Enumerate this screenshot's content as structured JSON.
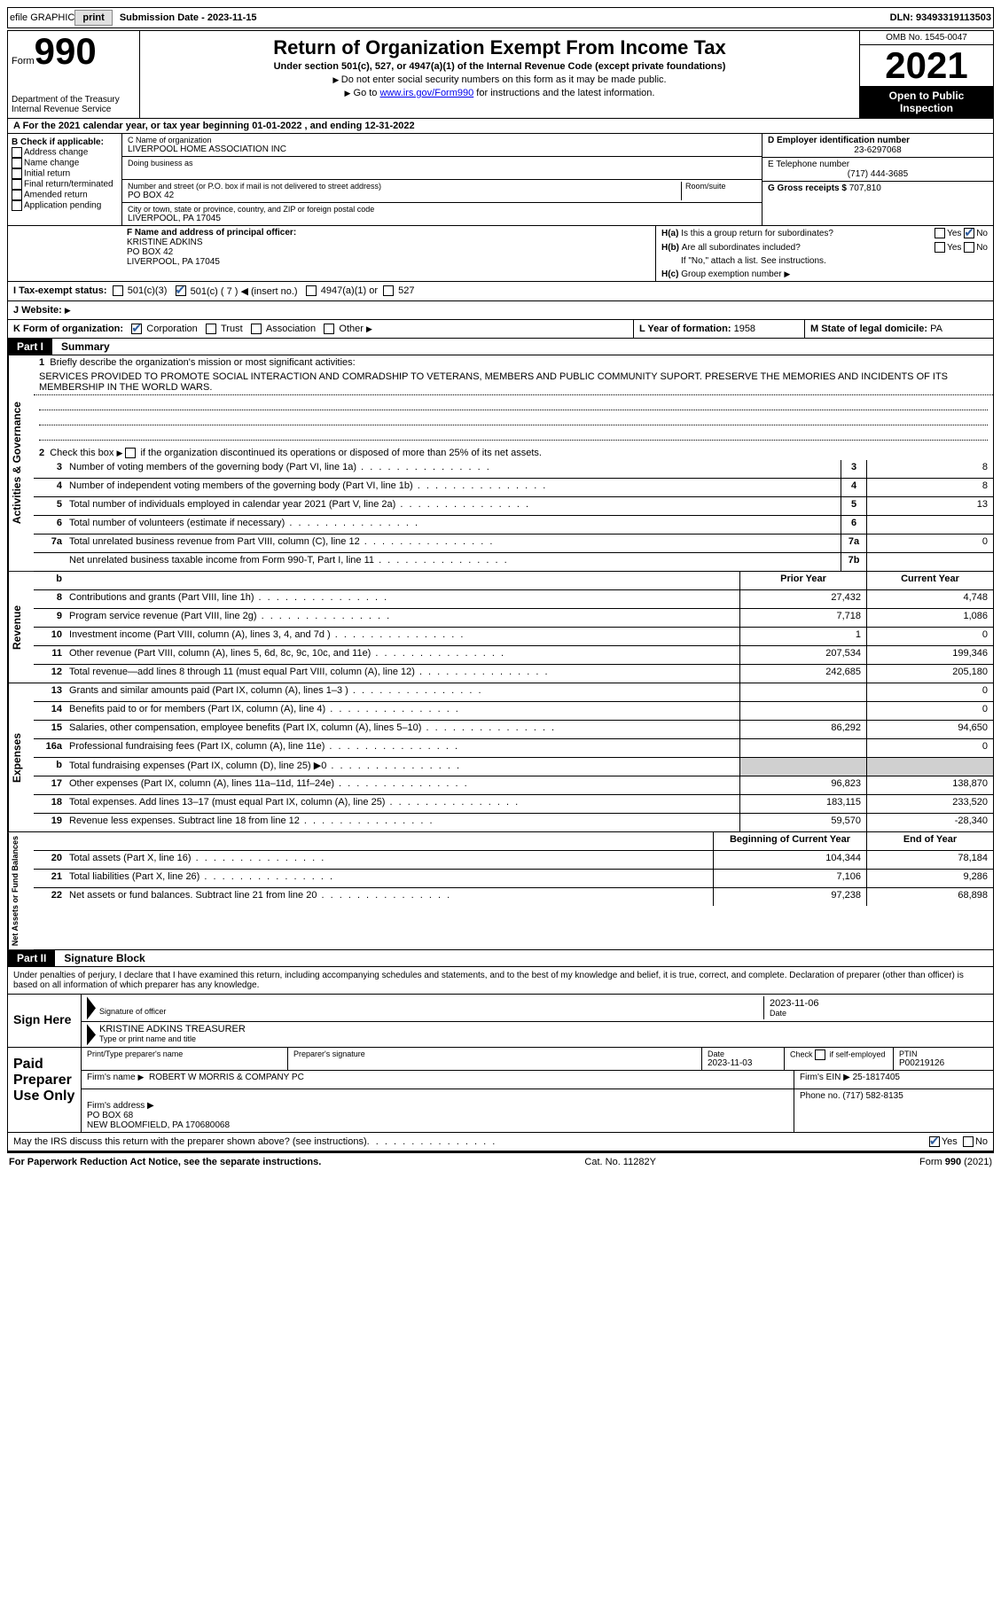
{
  "topbar": {
    "efile": "efile GRAPHIC",
    "print": "print",
    "submission": "Submission Date - 2023-11-15",
    "dln": "DLN: 93493319113503"
  },
  "header": {
    "form_word": "Form",
    "form_number": "990",
    "title": "Return of Organization Exempt From Income Tax",
    "subtitle": "Under section 501(c), 527, or 4947(a)(1) of the Internal Revenue Code (except private foundations)",
    "note1": "Do not enter social security numbers on this form as it may be made public.",
    "note2_a": "Go to ",
    "note2_link": "www.irs.gov/Form990",
    "note2_b": " for instructions and the latest information.",
    "dept": "Department of the Treasury\nInternal Revenue Service",
    "omb": "OMB No. 1545-0047",
    "year": "2021",
    "open": "Open to Public Inspection"
  },
  "a_line": "A For the 2021 calendar year, or tax year beginning 01-01-2022    , and ending 12-31-2022",
  "b": {
    "lead": "B Check if applicable:",
    "addr_change": "Address change",
    "name_change": "Name change",
    "initial": "Initial return",
    "final": "Final return/terminated",
    "amended": "Amended return",
    "app_pending": "Application pending"
  },
  "c": {
    "label": "C Name of organization",
    "name": "LIVERPOOL HOME ASSOCIATION INC",
    "dba_label": "Doing business as",
    "street_label": "Number and street (or P.O. box if mail is not delivered to street address)",
    "room_label": "Room/suite",
    "street": "PO BOX 42",
    "city_label": "City or town, state or province, country, and ZIP or foreign postal code",
    "city": "LIVERPOOL, PA  17045"
  },
  "d": {
    "label": "D Employer identification number",
    "value": "23-6297068",
    "e_label": "E Telephone number",
    "phone": "(717) 444-3685",
    "g_label": "G Gross receipts $",
    "g_value": "707,810"
  },
  "f": {
    "label": "F  Name and address of principal officer:",
    "name": "KRISTINE ADKINS",
    "addr1": "PO BOX 42",
    "addr2": "LIVERPOOL, PA  17045"
  },
  "h": {
    "a": "Is this a group return for subordinates?",
    "b": "Are all subordinates included?",
    "b_note": "If \"No,\" attach a list. See instructions.",
    "c": "Group exemption number",
    "yes": "Yes",
    "no": "No"
  },
  "i": {
    "label": "I  Tax-exempt status:",
    "c3": "501(c)(3)",
    "c_other": "501(c) ( 7 ) ◀ (insert no.)",
    "a1": "4947(a)(1) or",
    "s527": "527"
  },
  "j": {
    "label": "J  Website:",
    "arrow": "▶"
  },
  "k": {
    "label": "K Form of organization:",
    "corp": "Corporation",
    "trust": "Trust",
    "assoc": "Association",
    "other": "Other"
  },
  "l": {
    "label": "L Year of formation:",
    "value": "1958"
  },
  "m": {
    "label": "M State of legal domicile:",
    "value": "PA"
  },
  "part1": {
    "label": "Part I",
    "title": "Summary",
    "side_ag": "Activities & Governance",
    "side_rev": "Revenue",
    "side_exp": "Expenses",
    "side_net": "Net Assets or\nFund Balances",
    "q1": "Briefly describe the organization's mission or most significant activities:",
    "mission": "SERVICES PROVIDED TO PROMOTE SOCIAL INTERACTION AND COMRADSHIP TO VETERANS, MEMBERS AND PUBLIC COMMUNITY SUPORT. PRESERVE THE MEMORIES AND INCIDENTS OF ITS MEMBERSHIP IN THE WORLD WARS.",
    "q2": "Check this box ▶    if the organization discontinued its operations or disposed of more than 25% of its net assets.",
    "lines": [
      {
        "n": "3",
        "t": "Number of voting members of the governing body (Part VI, line 1a)",
        "box": "3",
        "v": "8"
      },
      {
        "n": "4",
        "t": "Number of independent voting members of the governing body (Part VI, line 1b)",
        "box": "4",
        "v": "8"
      },
      {
        "n": "5",
        "t": "Total number of individuals employed in calendar year 2021 (Part V, line 2a)",
        "box": "5",
        "v": "13"
      },
      {
        "n": "6",
        "t": "Total number of volunteers (estimate if necessary)",
        "box": "6",
        "v": ""
      },
      {
        "n": "7a",
        "t": "Total unrelated business revenue from Part VIII, column (C), line 12",
        "box": "7a",
        "v": "0"
      },
      {
        "n": "",
        "t": "Net unrelated business taxable income from Form 990-T, Part I, line 11",
        "box": "7b",
        "v": ""
      }
    ],
    "prior_hdr": "Prior Year",
    "curr_hdr": "Current Year",
    "rev_lines": [
      {
        "n": "8",
        "t": "Contributions and grants (Part VIII, line 1h)",
        "p": "27,432",
        "c": "4,748"
      },
      {
        "n": "9",
        "t": "Program service revenue (Part VIII, line 2g)",
        "p": "7,718",
        "c": "1,086"
      },
      {
        "n": "10",
        "t": "Investment income (Part VIII, column (A), lines 3, 4, and 7d )",
        "p": "1",
        "c": "0"
      },
      {
        "n": "11",
        "t": "Other revenue (Part VIII, column (A), lines 5, 6d, 8c, 9c, 10c, and 11e)",
        "p": "207,534",
        "c": "199,346"
      },
      {
        "n": "12",
        "t": "Total revenue—add lines 8 through 11 (must equal Part VIII, column (A), line 12)",
        "p": "242,685",
        "c": "205,180"
      }
    ],
    "exp_lines": [
      {
        "n": "13",
        "t": "Grants and similar amounts paid (Part IX, column (A), lines 1–3 )",
        "p": "",
        "c": "0"
      },
      {
        "n": "14",
        "t": "Benefits paid to or for members (Part IX, column (A), line 4)",
        "p": "",
        "c": "0"
      },
      {
        "n": "15",
        "t": "Salaries, other compensation, employee benefits (Part IX, column (A), lines 5–10)",
        "p": "86,292",
        "c": "94,650"
      },
      {
        "n": "16a",
        "t": "Professional fundraising fees (Part IX, column (A), line 11e)",
        "p": "",
        "c": "0"
      },
      {
        "n": "b",
        "t": "Total fundraising expenses (Part IX, column (D), line 25) ▶0",
        "p": "GRAY",
        "c": "GRAY"
      },
      {
        "n": "17",
        "t": "Other expenses (Part IX, column (A), lines 11a–11d, 11f–24e)",
        "p": "96,823",
        "c": "138,870"
      },
      {
        "n": "18",
        "t": "Total expenses. Add lines 13–17 (must equal Part IX, column (A), line 25)",
        "p": "183,115",
        "c": "233,520"
      },
      {
        "n": "19",
        "t": "Revenue less expenses. Subtract line 18 from line 12",
        "p": "59,570",
        "c": "-28,340"
      }
    ],
    "beg_hdr": "Beginning of Current Year",
    "end_hdr": "End of Year",
    "net_lines": [
      {
        "n": "20",
        "t": "Total assets (Part X, line 16)",
        "p": "104,344",
        "c": "78,184"
      },
      {
        "n": "21",
        "t": "Total liabilities (Part X, line 26)",
        "p": "7,106",
        "c": "9,286"
      },
      {
        "n": "22",
        "t": "Net assets or fund balances. Subtract line 21 from line 20",
        "p": "97,238",
        "c": "68,898"
      }
    ]
  },
  "part2": {
    "label": "Part II",
    "title": "Signature Block",
    "penalties": "Under penalties of perjury, I declare that I have examined this return, including accompanying schedules and statements, and to the best of my knowledge and belief, it is true, correct, and complete. Declaration of preparer (other than officer) is based on all information of which preparer has any knowledge.",
    "sign_here": "Sign Here",
    "sig_officer": "Signature of officer",
    "date": "Date",
    "sig_date": "2023-11-06",
    "officer_name": "KRISTINE ADKINS  TREASURER",
    "type_name": "Type or print name and title",
    "paid": "Paid Preparer Use Only",
    "prep_name_lbl": "Print/Type preparer's name",
    "prep_sig_lbl": "Preparer's signature",
    "prep_date_lbl": "Date",
    "prep_date": "2023-11-03",
    "check_self": "Check        if self-employed",
    "ptin_lbl": "PTIN",
    "ptin": "P00219126",
    "firm_name_lbl": "Firm's name    ",
    "firm_name": "ROBERT W MORRIS & COMPANY PC",
    "firm_ein_lbl": "Firm's EIN ▶",
    "firm_ein": "25-1817405",
    "firm_addr_lbl": "Firm's address ▶",
    "firm_addr": "PO BOX 68\nNEW BLOOMFIELD, PA  170680068",
    "phone_lbl": "Phone no.",
    "phone": "(717) 582-8135",
    "discuss": "May the IRS discuss this return with the preparer shown above? (see instructions)"
  },
  "footer": {
    "left": "For Paperwork Reduction Act Notice, see the separate instructions.",
    "mid": "Cat. No. 11282Y",
    "right": "Form 990 (2021)"
  }
}
